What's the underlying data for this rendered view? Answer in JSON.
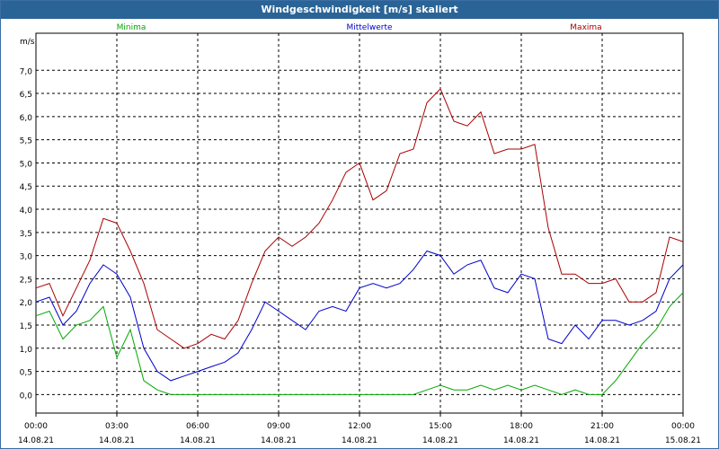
{
  "window": {
    "title": "Windgeschwindigkeit [m/s] skaliert"
  },
  "chart_data": {
    "type": "line",
    "title": "Windgeschwindigkeit [m/s] skaliert",
    "ylabel": "m/s",
    "ylim": [
      -0.4,
      7.8
    ],
    "grid": true,
    "legend_placement": "top",
    "y_ticks": [
      "0,0",
      "0,5",
      "1,0",
      "1,5",
      "2,0",
      "2,5",
      "3,0",
      "3,5",
      "4,0",
      "4,5",
      "5,0",
      "5,5",
      "6,0",
      "6,5",
      "7,0"
    ],
    "x_ticks": [
      {
        "time": "00:00",
        "date": "14.08.21"
      },
      {
        "time": "03:00",
        "date": "14.08.21"
      },
      {
        "time": "06:00",
        "date": "14.08.21"
      },
      {
        "time": "09:00",
        "date": "14.08.21"
      },
      {
        "time": "12:00",
        "date": "14.08.21"
      },
      {
        "time": "15:00",
        "date": "14.08.21"
      },
      {
        "time": "18:00",
        "date": "14.08.21"
      },
      {
        "time": "21:00",
        "date": "14.08.21"
      },
      {
        "time": "00:00",
        "date": "15.08.21"
      }
    ],
    "x_hours": [
      0,
      0.5,
      1,
      1.5,
      2,
      2.5,
      3,
      3.5,
      4,
      4.5,
      5,
      5.5,
      6,
      6.5,
      7,
      7.5,
      8,
      8.5,
      9,
      9.5,
      10,
      10.5,
      11,
      11.5,
      12,
      12.5,
      13,
      13.5,
      14,
      14.5,
      15,
      15.5,
      16,
      16.5,
      17,
      17.5,
      18,
      18.5,
      19,
      19.5,
      20,
      20.5,
      21,
      21.5,
      22,
      22.5,
      23,
      23.5,
      24
    ],
    "series": [
      {
        "name": "Minima",
        "color": "#00aa00",
        "values": [
          1.7,
          1.8,
          1.2,
          1.5,
          1.6,
          1.9,
          0.8,
          1.4,
          0.3,
          0.1,
          0.0,
          0.0,
          0.0,
          0.0,
          0.0,
          0.0,
          0.0,
          0.0,
          0.0,
          0.0,
          0.0,
          0.0,
          0.0,
          0.0,
          0.0,
          0.0,
          0.0,
          0.0,
          0.0,
          0.1,
          0.2,
          0.1,
          0.1,
          0.2,
          0.1,
          0.2,
          0.1,
          0.2,
          0.1,
          0.0,
          0.1,
          0.0,
          0.0,
          0.3,
          0.7,
          1.1,
          1.4,
          1.9,
          2.2
        ]
      },
      {
        "name": "Mittelwerte",
        "color": "#0000cc",
        "values": [
          2.0,
          2.1,
          1.5,
          1.8,
          2.4,
          2.8,
          2.6,
          2.1,
          1.0,
          0.5,
          0.3,
          0.4,
          0.5,
          0.6,
          0.7,
          0.9,
          1.4,
          2.0,
          1.8,
          1.6,
          1.4,
          1.8,
          1.9,
          1.8,
          2.3,
          2.4,
          2.3,
          2.4,
          2.7,
          3.1,
          3.0,
          2.6,
          2.8,
          2.9,
          2.3,
          2.2,
          2.6,
          2.5,
          1.2,
          1.1,
          1.5,
          1.2,
          1.6,
          1.6,
          1.5,
          1.6,
          1.8,
          2.5,
          2.8
        ]
      },
      {
        "name": "Maxima",
        "color": "#aa0000",
        "values": [
          2.3,
          2.4,
          1.7,
          2.3,
          2.9,
          3.8,
          3.7,
          3.1,
          2.4,
          1.4,
          1.2,
          1.0,
          1.1,
          1.3,
          1.2,
          1.6,
          2.4,
          3.1,
          3.4,
          3.2,
          3.4,
          3.7,
          4.2,
          4.8,
          5.0,
          4.2,
          4.4,
          5.2,
          5.3,
          6.3,
          6.6,
          5.9,
          5.8,
          6.1,
          5.2,
          5.3,
          5.3,
          5.4,
          3.6,
          2.6,
          2.6,
          2.4,
          2.4,
          2.5,
          2.0,
          2.0,
          2.2,
          3.4,
          3.3
        ]
      }
    ]
  }
}
